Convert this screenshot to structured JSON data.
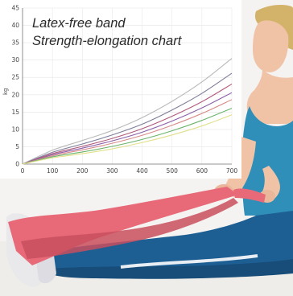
{
  "chart_data": {
    "type": "line",
    "title": "Latex-free band",
    "subtitle": "Strength-elongation chart",
    "xlabel": "",
    "ylabel": "kg",
    "xlim": [
      0,
      700
    ],
    "ylim": [
      0,
      45
    ],
    "grid": true,
    "x_ticks": [
      0,
      100,
      200,
      300,
      400,
      500,
      600,
      700
    ],
    "y_ticks": [
      0,
      5,
      10,
      15,
      20,
      25,
      30,
      35,
      40,
      45
    ],
    "x": [
      0,
      100,
      200,
      300,
      400,
      500,
      600,
      700
    ],
    "series": [
      {
        "values": [
          0,
          4.0,
          6.8,
          9.7,
          13.4,
          18.1,
          23.7,
          30.5
        ],
        "color": "#b9b9b9"
      },
      {
        "values": [
          0,
          3.4,
          5.8,
          8.4,
          11.5,
          15.6,
          20.4,
          26.2
        ],
        "color": "#7e7e9a"
      },
      {
        "values": [
          0,
          3.0,
          5.1,
          7.4,
          10.2,
          13.8,
          18.0,
          23.1
        ],
        "color": "#b05a7a"
      },
      {
        "values": [
          0,
          2.7,
          4.6,
          6.7,
          9.2,
          12.4,
          16.2,
          20.6
        ],
        "color": "#8a5fa8"
      },
      {
        "values": [
          0,
          2.4,
          4.1,
          6.0,
          8.3,
          11.2,
          14.6,
          18.6
        ],
        "color": "#d98a8a"
      },
      {
        "values": [
          0,
          2.1,
          3.5,
          5.1,
          7.1,
          9.6,
          12.6,
          16.1
        ],
        "color": "#6bb36b"
      },
      {
        "values": [
          0,
          1.8,
          3.0,
          4.4,
          6.2,
          8.4,
          11.0,
          14.2
        ],
        "color": "#e0e08a"
      }
    ]
  },
  "colors": {
    "band": "#e86a78",
    "band_shadow": "#c94f5e",
    "top": "#2f8fb8",
    "pants": "#1d5f93",
    "skin": "#f0c3a6",
    "hair": "#d3b36a"
  }
}
